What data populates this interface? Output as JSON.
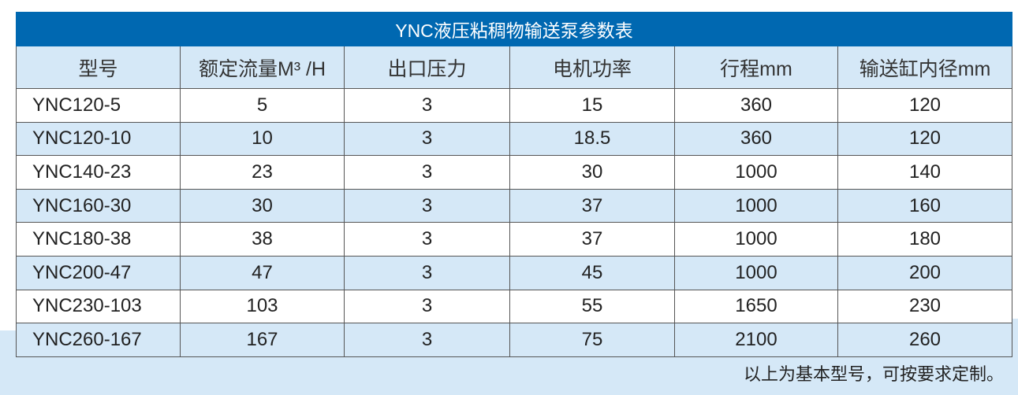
{
  "title": "YNC液压粘稠物输送泵参数表",
  "columns": [
    "型号",
    "额定流量M³ /H",
    "出口压力",
    "电机功率",
    "行程mm",
    "输送缸内径mm"
  ],
  "rows": [
    [
      "YNC120-5",
      "5",
      "3",
      "15",
      "360",
      "120"
    ],
    [
      "YNC120-10",
      "10",
      "3",
      "18.5",
      "360",
      "120"
    ],
    [
      "YNC140-23",
      "23",
      "3",
      "30",
      "1000",
      "140"
    ],
    [
      "YNC160-30",
      "30",
      "3",
      "37",
      "1000",
      "160"
    ],
    [
      "YNC180-38",
      "38",
      "3",
      "37",
      "1000",
      "180"
    ],
    [
      "YNC200-47",
      "47",
      "3",
      "45",
      "1000",
      "200"
    ],
    [
      "YNC230-103",
      "103",
      "3",
      "55",
      "1650",
      "230"
    ],
    [
      "YNC260-167",
      "167",
      "3",
      "75",
      "2100",
      "260"
    ]
  ],
  "note": "以上为基本型号，可按要求定制。",
  "colors": {
    "header_blue": "#0068b1",
    "row_alt": "#d5e8f7"
  }
}
